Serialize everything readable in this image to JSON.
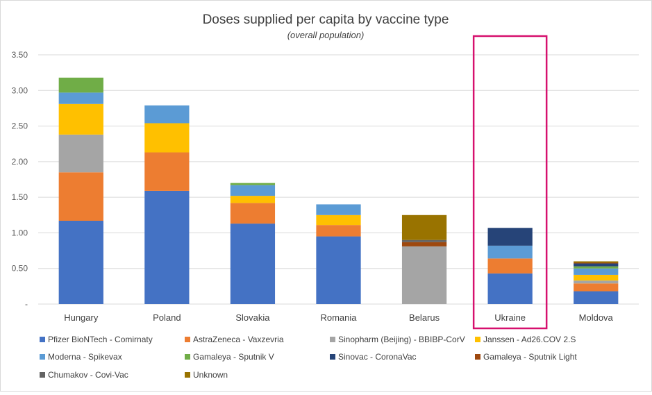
{
  "chart_data": {
    "type": "bar",
    "stacked": true,
    "title": "Doses supplied per capita by vaccine type",
    "subtitle": "(overall population)",
    "xlabel": "",
    "ylabel": "",
    "ylim": [
      0,
      3.5
    ],
    "yticks": [
      {
        "value": 0,
        "label": "-"
      },
      {
        "value": 0.5,
        "label": "0.50"
      },
      {
        "value": 1.0,
        "label": "1.00"
      },
      {
        "value": 1.5,
        "label": "1.50"
      },
      {
        "value": 2.0,
        "label": "2.00"
      },
      {
        "value": 2.5,
        "label": "2.50"
      },
      {
        "value": 3.0,
        "label": "3.00"
      },
      {
        "value": 3.5,
        "label": "3.50"
      }
    ],
    "grid": true,
    "legend_position": "bottom",
    "highlighted_category": "Ukraine",
    "highlight_color": "#d6106e",
    "categories": [
      "Hungary",
      "Poland",
      "Slovakia",
      "Romania",
      "Belarus",
      "Ukraine",
      "Moldova"
    ],
    "series": [
      {
        "name": "Pfizer BioNTech - Comirnaty",
        "color": "#4472c4",
        "values": [
          1.17,
          1.59,
          1.13,
          0.95,
          0.0,
          0.43,
          0.18
        ]
      },
      {
        "name": "AstraZeneca - Vaxzevria",
        "color": "#ed7d31",
        "values": [
          0.68,
          0.54,
          0.29,
          0.16,
          0.0,
          0.21,
          0.11
        ]
      },
      {
        "name": "Sinopharm (Beijing) - BBIBP-CorV",
        "color": "#a5a5a5",
        "values": [
          0.53,
          0.0,
          0.0,
          0.0,
          0.81,
          0.0,
          0.04
        ]
      },
      {
        "name": "Janssen - Ad26.COV 2.S",
        "color": "#ffc000",
        "values": [
          0.43,
          0.41,
          0.1,
          0.14,
          0.0,
          0.0,
          0.08
        ]
      },
      {
        "name": "Moderna - Spikevax",
        "color": "#5b9bd5",
        "values": [
          0.16,
          0.25,
          0.15,
          0.15,
          0.0,
          0.18,
          0.09
        ]
      },
      {
        "name": "Gamaleya - Sputnik V",
        "color": "#70ad47",
        "values": [
          0.21,
          0.0,
          0.03,
          0.0,
          0.0,
          0.0,
          0.03
        ]
      },
      {
        "name": "Sinovac - CoronaVac",
        "color": "#264478",
        "values": [
          0.0,
          0.0,
          0.0,
          0.0,
          0.0,
          0.25,
          0.04
        ]
      },
      {
        "name": "Gamaleya - Sputnik Light",
        "color": "#9e480e",
        "values": [
          0.0,
          0.0,
          0.0,
          0.0,
          0.06,
          0.0,
          0.01
        ]
      },
      {
        "name": "Chumakov - Covi-Vac",
        "color": "#636363",
        "values": [
          0.0,
          0.0,
          0.0,
          0.0,
          0.03,
          0.0,
          0.0
        ]
      },
      {
        "name": "Unknown",
        "color": "#997300",
        "values": [
          0.0,
          0.0,
          0.0,
          0.0,
          0.35,
          0.0,
          0.02
        ]
      }
    ]
  }
}
